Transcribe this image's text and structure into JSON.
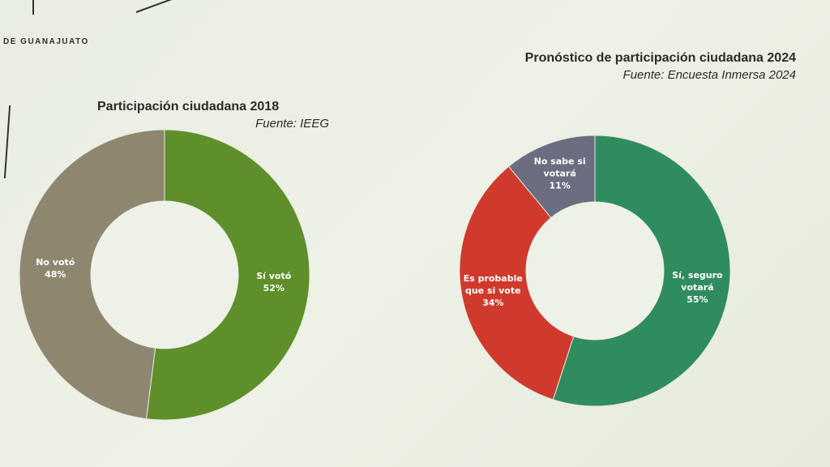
{
  "header": {
    "org_text": "DE GUANAJUATO"
  },
  "chart_data": [
    {
      "type": "pie",
      "title": "Participación ciudadana 2018",
      "subtitle": "Fuente: IEEG",
      "slices": [
        {
          "label": "Sí votó",
          "percent_label": "52%",
          "value": 52,
          "color": "#5e8f2a"
        },
        {
          "label": "No votó",
          "percent_label": "48%",
          "value": 48,
          "color": "#8f8670"
        }
      ],
      "start_angle_deg": 0,
      "hole": true
    },
    {
      "type": "pie",
      "title": "Pronóstico de participación ciudadana 2024",
      "subtitle": "Fuente: Encuesta Inmersa 2024",
      "slices": [
        {
          "label_lines": [
            "Sí, seguro",
            "votará"
          ],
          "percent_label": "55%",
          "value": 55,
          "color": "#2f8c5e"
        },
        {
          "label_lines": [
            "Es probable",
            "que si vote"
          ],
          "percent_label": "34%",
          "value": 34,
          "color": "#cf3a2c"
        },
        {
          "label_lines": [
            "No sabe si",
            "votará"
          ],
          "percent_label": "11%",
          "value": 11,
          "color": "#6b6d80"
        }
      ],
      "start_angle_deg": 0,
      "hole": true
    }
  ]
}
